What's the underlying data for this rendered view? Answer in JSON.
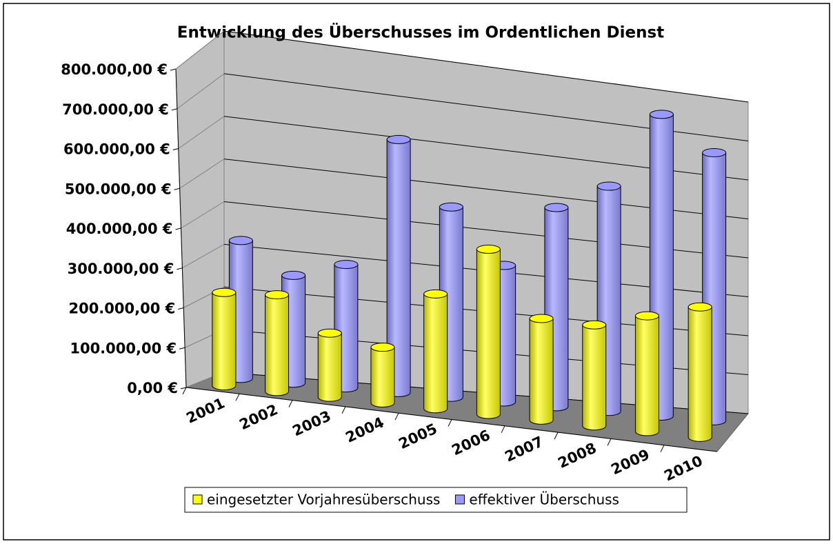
{
  "chart_data": {
    "type": "bar3d",
    "title": "Entwicklung des Überschusses im Ordentlichen Dienst",
    "categories": [
      "2001",
      "2002",
      "2003",
      "2004",
      "2005",
      "2006",
      "2007",
      "2008",
      "2009",
      "2010"
    ],
    "series": [
      {
        "name": "eingesetzter Vorjahresüberschuss",
        "color": "#ffff00",
        "values": [
          230000,
          240000,
          160000,
          140000,
          290000,
          420000,
          260000,
          260000,
          300000,
          340000
        ]
      },
      {
        "name": "effektiver Überschuss",
        "color": "#9999ff",
        "values": [
          330000,
          260000,
          300000,
          620000,
          470000,
          340000,
          500000,
          570000,
          770000,
          690000
        ]
      }
    ],
    "ylim": [
      0,
      800000
    ],
    "yticks": [
      {
        "value": 0,
        "label": "0,00 €"
      },
      {
        "value": 100000,
        "label": "100.000,00 €"
      },
      {
        "value": 200000,
        "label": "200.000,00 €"
      },
      {
        "value": 300000,
        "label": "300.000,00 €"
      },
      {
        "value": 400000,
        "label": "400.000,00 €"
      },
      {
        "value": 500000,
        "label": "500.000,00 €"
      },
      {
        "value": 600000,
        "label": "600.000,00 €"
      },
      {
        "value": 700000,
        "label": "700.000,00 €"
      },
      {
        "value": 800000,
        "label": "800.000,00 €"
      }
    ],
    "grid": true,
    "legend": "bottom"
  }
}
